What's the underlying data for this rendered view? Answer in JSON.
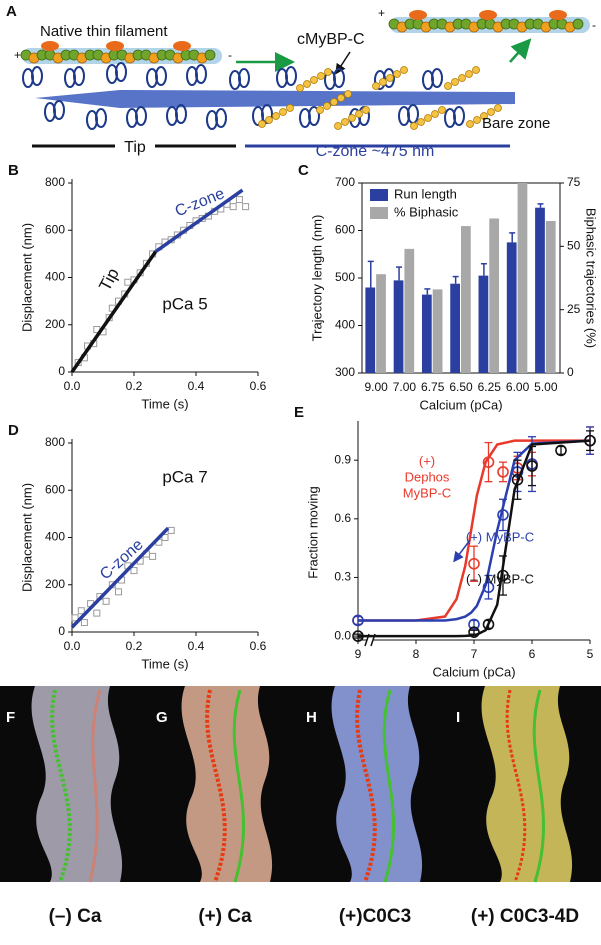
{
  "panel_a": {
    "label": "A",
    "filament_label": "Native thin filament",
    "plus_left": "+",
    "minus_left": "-",
    "mybpc_label": "cMyBP-C",
    "plus_right": "+",
    "minus_right": "-",
    "tip_label": "Tip",
    "czone_label": "C-zone ~475 nm",
    "bare_zone_label": "Bare zone"
  },
  "chart_data": [
    {
      "type": "scatter",
      "panel_label": "B",
      "xlabel": "Time (s)",
      "ylabel": "Displacement (nm)",
      "annotations": [
        "Tip",
        "C-zone",
        "pCa 5"
      ],
      "xlim": [
        0,
        0.6
      ],
      "xticks": [
        {
          "value": 0,
          "label": "0.0"
        },
        0.2,
        0.4,
        0.6
      ],
      "ylim": [
        0,
        800
      ],
      "yticks": [
        0,
        200,
        400,
        600,
        800
      ],
      "series": [
        {
          "mode": "markers",
          "color": "#9a9a9a",
          "x": [
            0.02,
            0.04,
            0.05,
            0.07,
            0.08,
            0.1,
            0.12,
            0.13,
            0.15,
            0.17,
            0.18,
            0.2,
            0.22,
            0.24,
            0.26,
            0.28,
            0.3,
            0.32,
            0.34,
            0.36,
            0.38,
            0.4,
            0.42,
            0.44,
            0.46,
            0.48,
            0.5,
            0.52,
            0.54,
            0.56
          ],
          "values": [
            40,
            60,
            110,
            120,
            180,
            170,
            230,
            270,
            300,
            330,
            380,
            390,
            420,
            460,
            500,
            530,
            550,
            560,
            580,
            600,
            620,
            640,
            650,
            660,
            680,
            690,
            710,
            700,
            730,
            700
          ]
        },
        {
          "mode": "line",
          "color": "#111111",
          "x": [
            0,
            0.27
          ],
          "values": [
            0,
            510
          ]
        },
        {
          "mode": "line",
          "color": "#2b3fa0",
          "x": [
            0.27,
            0.55
          ],
          "values": [
            510,
            770
          ]
        }
      ]
    },
    {
      "type": "bar",
      "panel_label": "C",
      "xlabel": "Calcium (pCa)",
      "ylabel": "Trajectory length (nm)",
      "y2label": "Biphasic trajectories (%)",
      "categories": [
        "9.00",
        "7.00",
        "6.75",
        "6.50",
        "6.25",
        "6.00",
        "5.00"
      ],
      "ylim": [
        300,
        700
      ],
      "yticks": [
        300,
        400,
        500,
        600,
        700
      ],
      "y2lim": [
        0,
        75
      ],
      "y2ticks": [
        0,
        25,
        50,
        75
      ],
      "legend": "upper-left",
      "series": [
        {
          "name": "Run length",
          "color": "#2b3fa0",
          "values": [
            480,
            495,
            465,
            488,
            505,
            575,
            648
          ],
          "errors": [
            55,
            28,
            12,
            15,
            25,
            20,
            8
          ]
        },
        {
          "name": "% Biphasic",
          "color": "#a8a8a8",
          "axis": "y2",
          "values": [
            39,
            49,
            33,
            58,
            61,
            75,
            60
          ]
        }
      ]
    },
    {
      "type": "scatter",
      "panel_label": "D",
      "xlabel": "Time (s)",
      "ylabel": "Displacement (nm)",
      "annotations": [
        "C-zone",
        "pCa 7"
      ],
      "xlim": [
        0,
        0.6
      ],
      "xticks": [
        {
          "value": 0,
          "label": "0.0"
        },
        0.2,
        0.4,
        0.6
      ],
      "ylim": [
        0,
        800
      ],
      "yticks": [
        0,
        200,
        400,
        600,
        800
      ],
      "series": [
        {
          "mode": "markers",
          "color": "#9a9a9a",
          "x": [
            0.01,
            0.03,
            0.04,
            0.06,
            0.08,
            0.09,
            0.11,
            0.13,
            0.15,
            0.16,
            0.18,
            0.2,
            0.22,
            0.24,
            0.26,
            0.28,
            0.3,
            0.32
          ],
          "values": [
            60,
            90,
            40,
            120,
            80,
            150,
            130,
            200,
            170,
            220,
            280,
            260,
            300,
            330,
            320,
            380,
            400,
            430
          ]
        },
        {
          "mode": "line",
          "color": "#2b3fa0",
          "x": [
            0,
            0.31
          ],
          "values": [
            20,
            440
          ]
        }
      ]
    },
    {
      "type": "dose",
      "panel_label": "E",
      "xlabel": "Calcium (pCa)",
      "ylabel": "Fraction moving",
      "annotations": [
        "(+)",
        "Dephos",
        "MyBP-C",
        "(+) MyBP-C",
        "(–) MyBP-C"
      ],
      "xlim": [
        9,
        5
      ],
      "xticks": [
        9,
        8,
        7,
        6,
        5
      ],
      "ylim": [
        -0.02,
        1.08
      ],
      "yticks": [
        {
          "value": 0,
          "label": "0.0"
        },
        0.3,
        0.6,
        0.9
      ],
      "series": [
        {
          "color": "#e8392b",
          "x": [
            9,
            7,
            6.75,
            6.5,
            6.25,
            6,
            5
          ],
          "values": [
            0.08,
            0.37,
            0.89,
            0.84,
            0.86,
            0.88,
            1.0
          ],
          "errors": [
            0.02,
            0.09,
            0.1,
            0.05,
            0.06,
            0.06,
            0.07
          ],
          "fit_x": [
            9,
            8,
            7.5,
            7.3,
            7.15,
            7.05,
            6.95,
            6.8,
            6.6,
            6.3,
            6,
            5
          ],
          "fit_values": [
            0.08,
            0.08,
            0.1,
            0.19,
            0.36,
            0.54,
            0.72,
            0.89,
            0.98,
            1.0,
            1.0,
            1.0
          ]
        },
        {
          "color": "#2b3fb0",
          "x": [
            9,
            7,
            6.75,
            6.5,
            6.25,
            6,
            5
          ],
          "values": [
            0.08,
            0.06,
            0.25,
            0.62,
            0.84,
            0.88,
            1.0
          ],
          "errors": [
            0.02,
            0.02,
            0.06,
            0.08,
            0.1,
            0.14,
            0.07
          ],
          "fit_x": [
            9,
            8,
            7.5,
            7.3,
            7.15,
            7.05,
            6.95,
            6.8,
            6.6,
            6.3,
            6,
            5
          ],
          "fit_values": [
            0.08,
            0.08,
            0.08,
            0.087,
            0.1,
            0.12,
            0.155,
            0.26,
            0.54,
            0.9,
            0.985,
            1.0
          ]
        },
        {
          "color": "#111111",
          "x": [
            9,
            7,
            6.75,
            6.5,
            6.25,
            6,
            5.5,
            5
          ],
          "values": [
            0,
            0.02,
            0.06,
            0.31,
            0.8,
            0.87,
            0.95,
            1.0
          ],
          "errors": [
            0.01,
            0.01,
            0.02,
            0.1,
            0.1,
            0.1,
            0.02,
            0.05
          ],
          "fit_x": [
            9,
            8,
            7.5,
            7.3,
            7.15,
            7.05,
            6.95,
            6.8,
            6.6,
            6.3,
            6,
            5
          ],
          "fit_values": [
            0,
            0,
            0,
            0,
            0.001,
            0.003,
            0.008,
            0.03,
            0.16,
            0.75,
            0.98,
            1.0
          ]
        }
      ]
    }
  ],
  "panels_fi": [
    {
      "label": "F",
      "caption": "(–) Ca"
    },
    {
      "label": "G",
      "caption": "(+) Ca"
    },
    {
      "label": "H",
      "caption": "(+)C0C3"
    },
    {
      "label": "I",
      "caption": "(+) C0C3-4D"
    }
  ]
}
